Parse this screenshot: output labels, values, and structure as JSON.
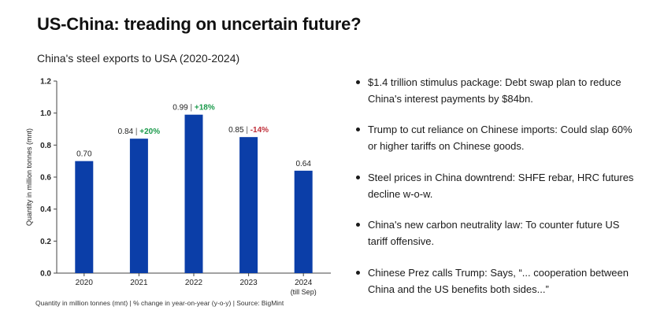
{
  "title": "US-China: treading on uncertain future?",
  "footnote": "Quantity in million tonnes (mnt) | % change in year-on-year (y-o-y) | Source: BigMint",
  "colors": {
    "bar": "#0b3ea8",
    "positive": "#1a9a4b",
    "negative": "#c0303a",
    "axis": "#444444",
    "grid": "#e4e4e4"
  },
  "bullets": [
    "$1.4 trillion stimulus package: Debt swap plan to reduce China's interest payments by $84bn.",
    "Trump to cut reliance on Chinese imports: Could slap 60% or higher tariffs on Chinese goods.",
    "Steel prices in China downtrend: SHFE rebar, HRC futures decline w-o-w.",
    "China's new carbon neutrality law: To counter future US tariff offensive.",
    "Chinese Prez calls Trump: Says, “... cooperation between China and the US benefits both sides...”"
  ],
  "chart_data": {
    "type": "bar",
    "title": "China's steel exports to USA (2020-2024)",
    "xlabel": "",
    "ylabel": "Quantity in million tonnes (mnt)",
    "categories": [
      "2020",
      "2021",
      "2022",
      "2023",
      "2024"
    ],
    "category_sublabels": [
      "",
      "",
      "",
      "",
      "(till Sep)"
    ],
    "values": [
      0.7,
      0.84,
      0.99,
      0.85,
      0.64
    ],
    "value_labels": [
      "0.70",
      "0.84",
      "0.99",
      "0.85",
      "0.64"
    ],
    "change_labels": [
      "",
      "+20%",
      "+18%",
      "-14%",
      ""
    ],
    "ylim": [
      0,
      1.2
    ],
    "yticks": [
      0.0,
      0.2,
      0.4,
      0.6,
      0.8,
      1.0,
      1.2
    ],
    "ytick_labels": [
      "0.0",
      "0.2",
      "0.4",
      "0.6",
      "0.8",
      "1.0",
      "1.2"
    ],
    "grid": false,
    "legend": "none"
  }
}
